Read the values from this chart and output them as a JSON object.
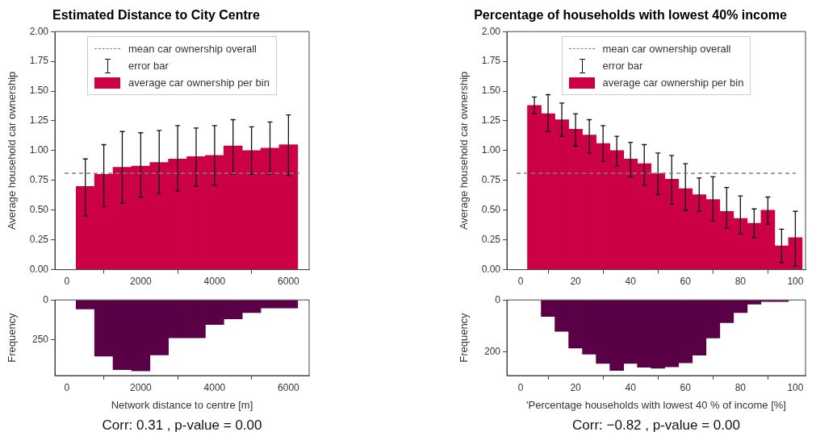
{
  "chart_data": [
    {
      "type": "histogram",
      "title": "Estimated Distance to City Centre",
      "ylabel": "Average household car ownership",
      "bins": [
        250,
        750,
        1250,
        1750,
        2250,
        2750,
        3250,
        3750,
        4250,
        4750,
        5250,
        5750,
        6250
      ],
      "series": [
        {
          "name": "average car ownership per bin",
          "color": "#cc0044",
          "values": [
            0.7,
            0.8,
            0.86,
            0.87,
            0.9,
            0.93,
            0.95,
            0.96,
            1.04,
            1.0,
            1.02,
            1.05
          ],
          "errors": [
            [
              0.45,
              0.93
            ],
            [
              0.53,
              1.05
            ],
            [
              0.56,
              1.16
            ],
            [
              0.61,
              1.15
            ],
            [
              0.64,
              1.17
            ],
            [
              0.66,
              1.21
            ],
            [
              0.7,
              1.19
            ],
            [
              0.71,
              1.21
            ],
            [
              0.8,
              1.26
            ],
            [
              0.8,
              1.2
            ],
            [
              0.8,
              1.24
            ],
            [
              0.79,
              1.3
            ]
          ]
        }
      ],
      "ref_lines": [
        {
          "axis": "y",
          "value": 0.81,
          "label": "mean car ownership overall",
          "color": "#808080",
          "line_style": "dashed"
        }
      ],
      "annotations": [
        "error bar"
      ],
      "xlim": [
        -325,
        6560
      ],
      "xticks": [
        0,
        2000,
        4000,
        6000
      ],
      "ylim": [
        0,
        2
      ],
      "yticks": [
        {
          "value": 0,
          "label": "0.00"
        },
        0.25,
        {
          "value": 0.5,
          "label": "0.50"
        },
        0.75,
        {
          "value": 1,
          "label": "1.00"
        },
        1.25,
        {
          "value": 1.5,
          "label": "1.50"
        },
        1.75,
        {
          "value": 2,
          "label": "2.00"
        }
      ],
      "grid": false,
      "legend": "top"
    },
    {
      "type": "histogram",
      "xlabel": "Network distance to centre [m]",
      "ylabel": "Frequency",
      "bins": [
        250,
        750,
        1250,
        1750,
        2250,
        2750,
        3250,
        3750,
        4250,
        4750,
        5250,
        5750,
        6250
      ],
      "values": [
        57,
        354,
        439,
        447,
        346,
        238,
        238,
        154,
        119,
        80,
        51,
        51
      ],
      "color": "#5a0046",
      "annotations": [
        "Corr: 0.31 , p-value = 0.00"
      ],
      "xlim": [
        -325,
        6560
      ],
      "xticks": [
        0,
        2000,
        4000,
        6000
      ],
      "ylim": [
        476,
        0
      ],
      "yticks": [
        0,
        250
      ],
      "grid": false
    },
    {
      "type": "histogram",
      "title": "Percentage of households with lowest 40% income",
      "ylabel": "Average household car ownership",
      "bins": [
        2.5,
        7.5,
        12.5,
        17.5,
        22.5,
        27.5,
        32.5,
        37.5,
        42.5,
        47.5,
        52.5,
        57.5,
        62.5,
        67.5,
        72.5,
        77.5,
        82.5,
        87.5,
        92.5,
        97.5,
        102.5
      ],
      "series": [
        {
          "name": "average car ownership per bin",
          "color": "#cc0044",
          "values": [
            1.38,
            1.31,
            1.26,
            1.18,
            1.13,
            1.06,
            1.0,
            0.93,
            0.89,
            0.81,
            0.76,
            0.68,
            0.63,
            0.59,
            0.49,
            0.43,
            0.39,
            0.5,
            0.2,
            0.27
          ],
          "errors": [
            [
              1.31,
              1.45
            ],
            [
              1.16,
              1.47
            ],
            [
              1.12,
              1.4
            ],
            [
              1.04,
              1.31
            ],
            [
              0.98,
              1.26
            ],
            [
              0.91,
              1.21
            ],
            [
              0.87,
              1.12
            ],
            [
              0.78,
              1.07
            ],
            [
              0.71,
              1.05
            ],
            [
              0.63,
              0.98
            ],
            [
              0.55,
              0.96
            ],
            [
              0.5,
              0.89
            ],
            [
              0.49,
              0.77
            ],
            [
              0.41,
              0.78
            ],
            [
              0.35,
              0.69
            ],
            [
              0.3,
              0.62
            ],
            [
              0.27,
              0.51
            ],
            [
              0.38,
              0.61
            ],
            [
              0.06,
              0.34
            ],
            [
              0.03,
              0.49
            ]
          ]
        }
      ],
      "ref_lines": [
        {
          "axis": "y",
          "value": 0.81,
          "label": "mean car ownership overall",
          "color": "#808080",
          "line_style": "dashed"
        }
      ],
      "annotations": [
        "error bar"
      ],
      "xlim": [
        -5,
        103.7
      ],
      "xticks": [
        0,
        20,
        40,
        60,
        80,
        100
      ],
      "ylim": [
        0,
        2
      ],
      "yticks": [
        {
          "value": 0,
          "label": "0.00"
        },
        0.25,
        {
          "value": 0.5,
          "label": "0.50"
        },
        0.75,
        {
          "value": 1,
          "label": "1.00"
        },
        1.25,
        {
          "value": 1.5,
          "label": "1.50"
        },
        1.75,
        {
          "value": 2,
          "label": "2.00"
        }
      ],
      "grid": false,
      "legend": "top"
    },
    {
      "type": "histogram",
      "xlabel": "'Percentage households with lowest 40 % of income [%]",
      "ylabel": "Frequency",
      "bins": [
        2.5,
        7.5,
        12.5,
        17.5,
        22.5,
        27.5,
        32.5,
        37.5,
        42.5,
        47.5,
        52.5,
        57.5,
        62.5,
        67.5,
        72.5,
        77.5,
        82.5,
        87.5,
        92.5,
        97.5,
        102.5
      ],
      "values": [
        null,
        64,
        121,
        186,
        209,
        245,
        272,
        245,
        260,
        264,
        258,
        243,
        213,
        147,
        88,
        49,
        16,
        6,
        6,
        null
      ],
      "color": "#5a0046",
      "annotations": [
        "Corr: −0.82 , p-value = 0.00"
      ],
      "xlim": [
        -5,
        103.7
      ],
      "xticks": [
        0,
        20,
        40,
        60,
        80,
        100
      ],
      "ylim": [
        292,
        0
      ],
      "yticks": [
        0,
        200
      ],
      "grid": false
    }
  ]
}
